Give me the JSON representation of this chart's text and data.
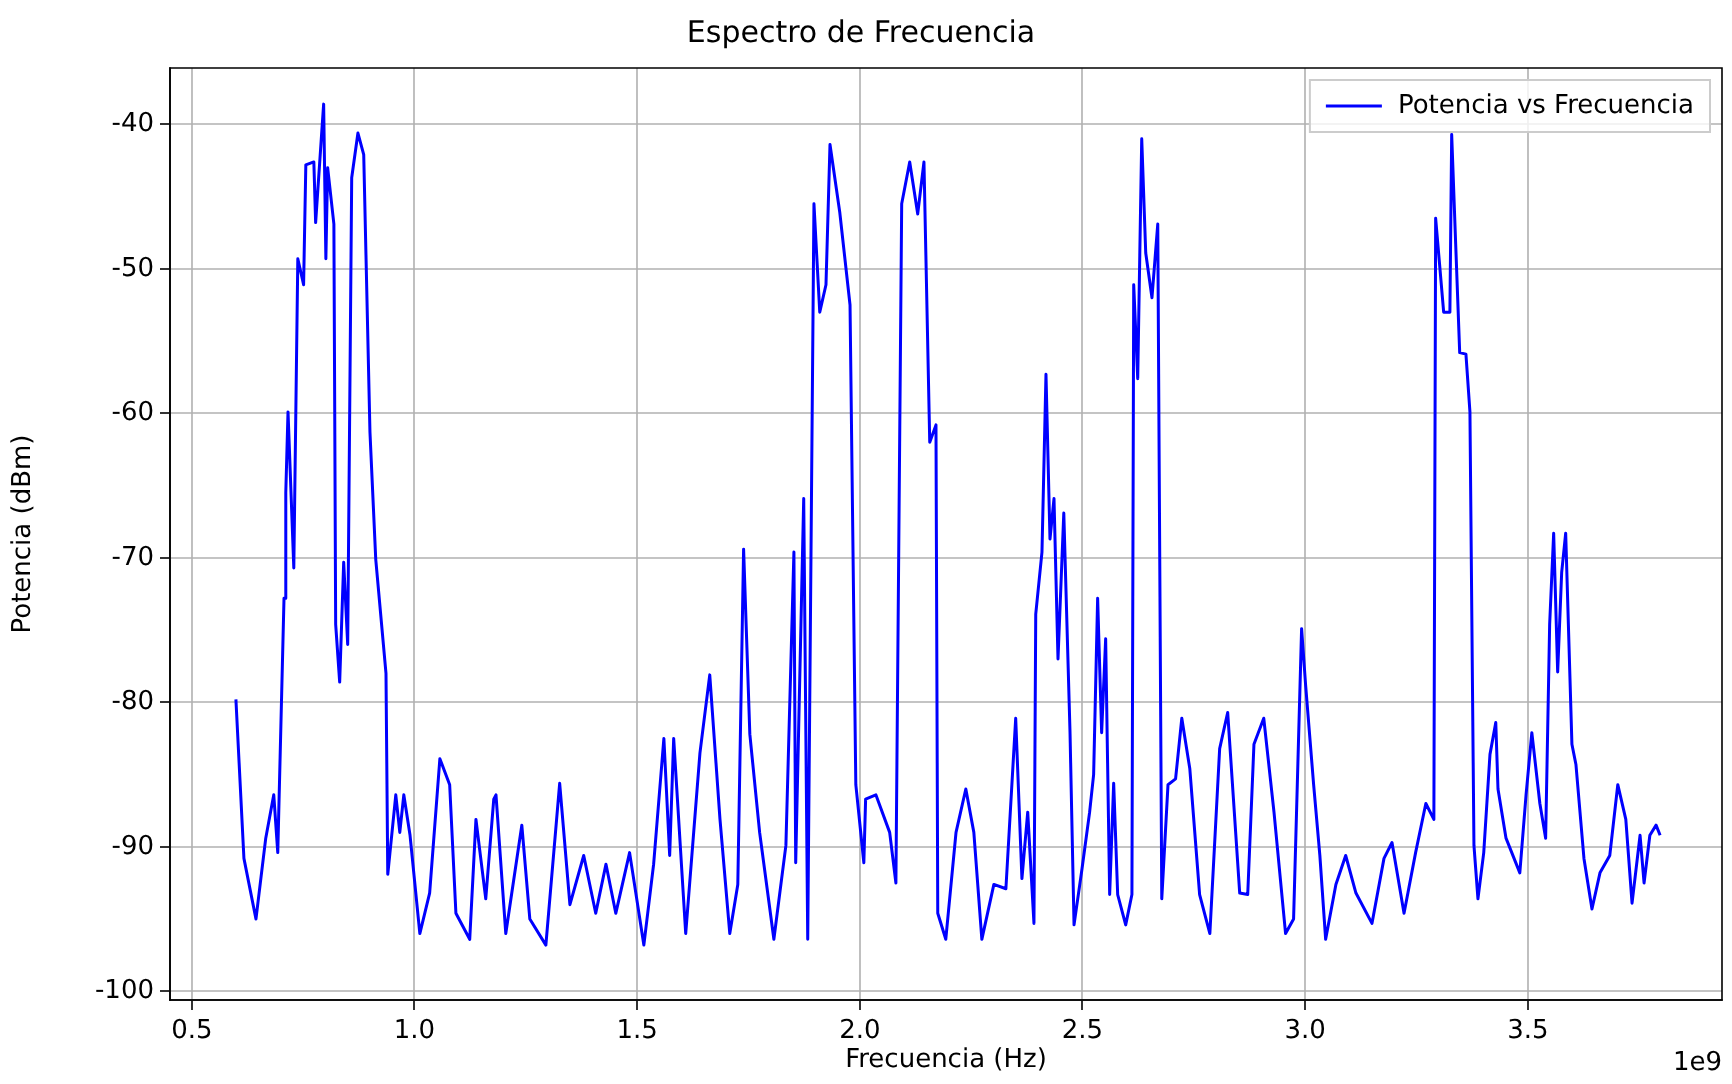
{
  "chart_data": {
    "type": "line",
    "title": "Espectro de Frecuencia",
    "xlabel": "Frecuencia (Hz)",
    "ylabel": "Potencia (dBm)",
    "annotations": [
      "1e9"
    ],
    "xlim": [
      0.451,
      3.936
    ],
    "ylim": [
      -100.6,
      -36.1
    ],
    "xticks": [
      0.5,
      {
        "value": 1,
        "label": "1.0"
      },
      1.5,
      {
        "value": 2,
        "label": "2.0"
      },
      2.5,
      {
        "value": 3,
        "label": "3.0"
      },
      3.5
    ],
    "yticks": [
      -100,
      -90,
      -80,
      -70,
      -60,
      -50,
      -40
    ],
    "grid": true,
    "legend": "top right",
    "marker": "none",
    "line_style": "solid",
    "series": [
      {
        "name": "Potencia vs Frecuencia",
        "color": "#0000ff",
        "x": [
          0.599,
          0.617,
          0.644,
          0.666,
          0.684,
          0.693,
          0.707,
          0.711,
          0.716,
          0.729,
          0.738,
          0.751,
          0.756,
          0.774,
          0.778,
          0.796,
          0.801,
          0.805,
          0.819,
          0.823,
          0.832,
          0.841,
          0.85,
          0.859,
          0.873,
          0.886,
          0.9,
          0.913,
          0.936,
          0.94,
          0.958,
          0.967,
          0.976,
          0.99,
          1.012,
          1.034,
          1.057,
          1.079,
          1.093,
          1.124,
          1.138,
          1.16,
          1.178,
          1.183,
          1.205,
          1.241,
          1.259,
          1.295,
          1.326,
          1.349,
          1.38,
          1.407,
          1.43,
          1.452,
          1.483,
          1.515,
          1.537,
          1.56,
          1.573,
          1.582,
          1.609,
          1.641,
          1.663,
          1.686,
          1.708,
          1.726,
          1.739,
          1.753,
          1.775,
          1.807,
          1.834,
          1.852,
          1.856,
          1.874,
          1.883,
          1.897,
          1.91,
          1.924,
          1.933,
          1.955,
          1.978,
          1.991,
          2.009,
          2.013,
          2.036,
          2.067,
          2.081,
          2.094,
          2.112,
          2.13,
          2.144,
          2.157,
          2.171,
          2.175,
          2.193,
          2.216,
          2.238,
          2.256,
          2.274,
          2.301,
          2.328,
          2.35,
          2.364,
          2.377,
          2.391,
          2.395,
          2.409,
          2.418,
          2.427,
          2.436,
          2.445,
          2.458,
          2.472,
          2.481,
          2.499,
          2.516,
          2.525,
          2.534,
          2.543,
          2.552,
          2.561,
          2.57,
          2.579,
          2.597,
          2.611,
          2.615,
          2.624,
          2.633,
          2.642,
          2.656,
          2.669,
          2.678,
          2.692,
          2.709,
          2.723,
          2.741,
          2.763,
          2.786,
          2.808,
          2.826,
          2.853,
          2.871,
          2.885,
          2.907,
          2.93,
          2.956,
          2.974,
          2.992,
          3.001,
          3.019,
          3.033,
          3.046,
          3.069,
          3.091,
          3.114,
          3.15,
          3.177,
          3.195,
          3.222,
          3.248,
          3.271,
          3.289,
          3.293,
          3.311,
          3.325,
          3.329,
          3.338,
          3.347,
          3.361,
          3.37,
          3.379,
          3.388,
          3.401,
          3.415,
          3.428,
          3.433,
          3.451,
          3.482,
          3.496,
          3.509,
          3.527,
          3.54,
          3.549,
          3.558,
          3.567,
          3.576,
          3.585,
          3.599,
          3.608,
          3.626,
          3.644,
          3.662,
          3.684,
          3.702,
          3.72,
          3.734,
          3.752,
          3.761,
          3.774,
          3.788,
          3.797
        ],
        "values": [
          -79.8,
          -90.8,
          -95.0,
          -89.4,
          -86.4,
          -90.4,
          -72.8,
          -65.5,
          -59.9,
          -70.7,
          -49.3,
          -51.1,
          -42.8,
          -42.6,
          -46.8,
          -38.6,
          -49.3,
          -43.0,
          -46.9,
          -74.6,
          -78.6,
          -70.3,
          -76.0,
          -43.7,
          -40.6,
          -42.1,
          -61.3,
          -70.1,
          -78.0,
          -91.9,
          -86.4,
          -89.0,
          -86.4,
          -89.2,
          -96.0,
          -93.2,
          -83.9,
          -85.7,
          -94.6,
          -96.4,
          -88.1,
          -93.6,
          -86.7,
          -86.4,
          -96.0,
          -88.5,
          -95.0,
          -96.8,
          -85.6,
          -94.0,
          -90.6,
          -94.6,
          -91.2,
          -94.6,
          -90.4,
          -96.8,
          -91.2,
          -82.5,
          -90.6,
          -82.5,
          -96.0,
          -83.5,
          -78.1,
          -88.1,
          -96.0,
          -92.6,
          -69.4,
          -82.2,
          -89.0,
          -96.4,
          -89.9,
          -69.6,
          -91.1,
          -65.9,
          -96.4,
          -45.5,
          -53.0,
          -51.1,
          -41.4,
          -46.1,
          -52.5,
          -85.7,
          -91.1,
          -86.7,
          -86.4,
          -89.0,
          -92.5,
          -45.5,
          -42.6,
          -46.2,
          -42.6,
          -62.0,
          -60.8,
          -94.6,
          -96.4,
          -89.0,
          -86.0,
          -89.0,
          -96.4,
          -92.6,
          -92.9,
          -81.1,
          -92.2,
          -87.6,
          -95.3,
          -73.9,
          -69.6,
          -57.3,
          -68.7,
          -65.9,
          -77.0,
          -66.9,
          -82.1,
          -95.4,
          -91.5,
          -87.6,
          -85.0,
          -72.8,
          -82.1,
          -75.6,
          -93.3,
          -85.6,
          -93.3,
          -95.4,
          -93.3,
          -51.1,
          -57.6,
          -41.0,
          -48.9,
          -52.0,
          -46.9,
          -93.6,
          -85.7,
          -85.3,
          -81.1,
          -84.6,
          -93.3,
          -96.0,
          -83.2,
          -80.7,
          -93.2,
          -93.3,
          -82.9,
          -81.1,
          -87.6,
          -96.0,
          -95.0,
          -74.9,
          -78.8,
          -85.7,
          -90.6,
          -96.4,
          -92.6,
          -90.6,
          -93.2,
          -95.3,
          -90.8,
          -89.7,
          -94.6,
          -90.4,
          -87.0,
          -88.1,
          -46.5,
          -53.0,
          -53.0,
          -40.7,
          -48.3,
          -55.8,
          -55.9,
          -59.9,
          -89.9,
          -93.6,
          -90.4,
          -83.6,
          -81.4,
          -86.0,
          -89.4,
          -91.8,
          -86.4,
          -82.1,
          -87.0,
          -89.4,
          -74.6,
          -68.3,
          -77.9,
          -71.0,
          -68.3,
          -82.9,
          -84.3,
          -90.8,
          -94.3,
          -91.8,
          -90.6,
          -85.7,
          -88.1,
          -93.9,
          -89.2,
          -92.5,
          -89.2,
          -88.5,
          -89.2
        ]
      }
    ]
  }
}
